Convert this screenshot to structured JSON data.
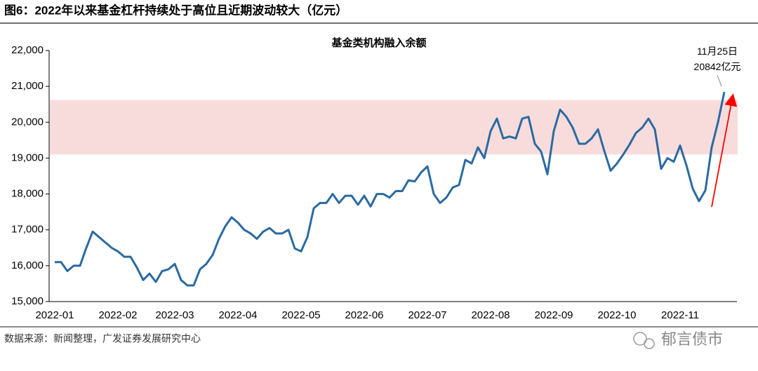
{
  "header": {
    "title": "图6：2022年以来基金杠杆持续处于高位且近期波动较大（亿元）"
  },
  "chart_data": {
    "type": "line",
    "title": "基金类机构融入余额",
    "categories": [
      "2022-01",
      null,
      null,
      null,
      null,
      null,
      null,
      null,
      null,
      null,
      "2022-02",
      null,
      null,
      null,
      null,
      null,
      null,
      null,
      null,
      "2022-03",
      null,
      null,
      null,
      null,
      null,
      null,
      null,
      null,
      null,
      "2022-04",
      null,
      null,
      null,
      null,
      null,
      null,
      null,
      null,
      null,
      "2022-05",
      null,
      null,
      null,
      null,
      null,
      null,
      null,
      null,
      null,
      "2022-06",
      null,
      null,
      null,
      null,
      null,
      null,
      null,
      null,
      null,
      "2022-07",
      null,
      null,
      null,
      null,
      null,
      null,
      null,
      null,
      null,
      "2022-08",
      null,
      null,
      null,
      null,
      null,
      null,
      null,
      null,
      null,
      "2022-09",
      null,
      null,
      null,
      null,
      null,
      null,
      null,
      null,
      null,
      "2022-10",
      null,
      null,
      null,
      null,
      null,
      null,
      null,
      null,
      null,
      "2022-11",
      null,
      null,
      null,
      null,
      null,
      null,
      null
    ],
    "series": [
      {
        "name": "基金类机构融入余额",
        "color": "#2a6aa1",
        "values": [
          16100,
          16100,
          15850,
          16000,
          16000,
          16500,
          16950,
          16800,
          16650,
          16500,
          16400,
          16250,
          16250,
          15950,
          15600,
          15780,
          15550,
          15850,
          15900,
          16050,
          15600,
          15450,
          15450,
          15900,
          16050,
          16300,
          16750,
          17100,
          17350,
          17200,
          17000,
          16900,
          16750,
          16950,
          17050,
          16900,
          16900,
          17000,
          16480,
          16400,
          16800,
          17600,
          17750,
          17750,
          18000,
          17750,
          17950,
          17950,
          17700,
          17950,
          17650,
          18000,
          18000,
          17900,
          18080,
          18080,
          18380,
          18350,
          18600,
          18770,
          18000,
          17750,
          17900,
          18180,
          18250,
          18950,
          18850,
          19300,
          19000,
          19750,
          20100,
          19550,
          19600,
          19550,
          20100,
          20150,
          19400,
          19180,
          18550,
          19750,
          20350,
          20150,
          19850,
          19400,
          19400,
          19550,
          19800,
          19200,
          18650,
          18850,
          19100,
          19380,
          19700,
          19850,
          20100,
          19800,
          18700,
          19000,
          18900,
          19350,
          18800,
          18150,
          17800,
          18100,
          19300,
          20000,
          20842
        ]
      }
    ],
    "ylim": [
      15000,
      22000
    ],
    "yticks": [
      {
        "value": 15000,
        "label": "15,000"
      },
      {
        "value": 16000,
        "label": "16,000"
      },
      {
        "value": 17000,
        "label": "17,000"
      },
      {
        "value": 18000,
        "label": "18,000"
      },
      {
        "value": 19000,
        "label": "19,000"
      },
      {
        "value": 20000,
        "label": "20,000"
      },
      {
        "value": 21000,
        "label": "21,000"
      },
      {
        "value": 22000,
        "label": "22,000"
      }
    ],
    "band": {
      "range": [
        19100,
        20620
      ],
      "color": "#f8dcdc"
    },
    "annotations": [
      "11月25日",
      "20842亿元"
    ]
  },
  "footer": {
    "source": "数据来源：新闻整理，广发证券发展研究中心",
    "watermark": "郁言债市"
  }
}
